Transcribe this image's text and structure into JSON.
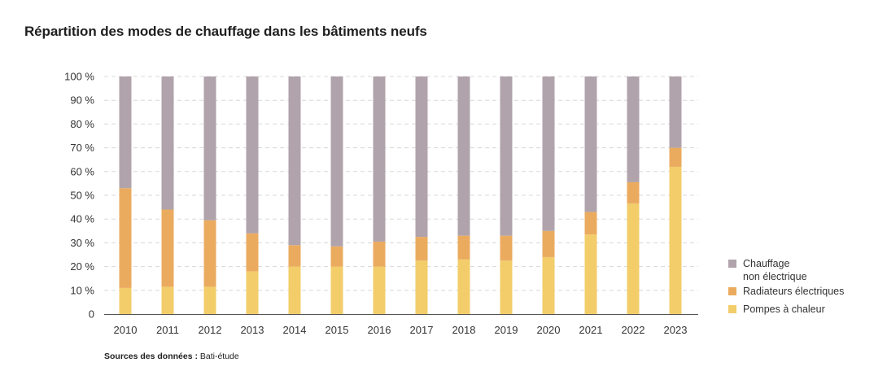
{
  "title": "Répartition des modes de chauffage dans les bâtiments neufs",
  "source": {
    "label": "Sources des données :",
    "value": "Bati-étude"
  },
  "chart_data": {
    "type": "bar",
    "stacked": true,
    "title": "Répartition des modes de chauffage dans les bâtiments neufs",
    "xlabel": "",
    "ylabel": "",
    "categories": [
      "2010",
      "2011",
      "2012",
      "2013",
      "2014",
      "2015",
      "2016",
      "2017",
      "2018",
      "2019",
      "2020",
      "2021",
      "2022",
      "2023"
    ],
    "y_ticks": [
      "0",
      "10 %",
      "20 %",
      "30 %",
      "40 %",
      "50 %",
      "60 %",
      "70 %",
      "80 %",
      "90 %",
      "100 %"
    ],
    "ylim": [
      0,
      100
    ],
    "grid": true,
    "legend_position": "right",
    "series": [
      {
        "name": "Pompes à chaleur",
        "color": "#f2cd6a",
        "values": [
          11,
          11.5,
          11.5,
          18,
          20,
          20,
          20,
          22.5,
          23,
          22.5,
          24,
          33.5,
          46.5,
          62
        ]
      },
      {
        "name": "Radiateurs électriques",
        "color": "#ebab5f",
        "values": [
          42,
          32.5,
          28,
          16,
          9,
          8.5,
          10.5,
          10,
          10,
          10.5,
          11,
          9.5,
          9,
          8
        ]
      },
      {
        "name": "Chauffage non électrique",
        "color": "#b0a3ab",
        "values": [
          47,
          56,
          60.5,
          66,
          71,
          71.5,
          69.5,
          67.5,
          67,
          67,
          65,
          57,
          44.5,
          30
        ]
      }
    ],
    "legend": [
      {
        "lines": [
          "Chauffage",
          "non électrique"
        ],
        "color": "#b0a3ab"
      },
      {
        "lines": [
          "Radiateurs électriques"
        ],
        "color": "#ebab5f"
      },
      {
        "lines": [
          "Pompes à chaleur"
        ],
        "color": "#f2cd6a"
      }
    ]
  }
}
